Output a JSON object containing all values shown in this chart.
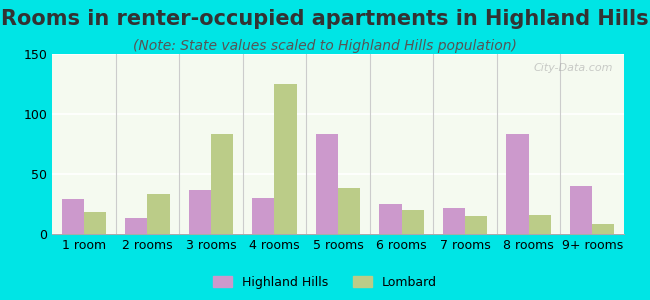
{
  "title": "Rooms in renter-occupied apartments in Highland Hills",
  "subtitle": "(Note: State values scaled to Highland Hills population)",
  "categories": [
    "1 room",
    "2 rooms",
    "3 rooms",
    "4 rooms",
    "5 rooms",
    "6 rooms",
    "7 rooms",
    "8 rooms",
    "9+ rooms"
  ],
  "highland_hills": [
    29,
    13,
    37,
    30,
    83,
    25,
    22,
    83,
    40
  ],
  "lombard": [
    18,
    33,
    83,
    125,
    38,
    20,
    15,
    16,
    8
  ],
  "highland_hills_color": "#cc99cc",
  "lombard_color": "#bbcc88",
  "ylim": [
    0,
    150
  ],
  "yticks": [
    0,
    50,
    100,
    150
  ],
  "bar_width": 0.35,
  "background_top": "#e8f5e8",
  "background_bottom": "#f0f8f0",
  "outer_bg": "#00e5e5",
  "watermark": "City-Data.com",
  "legend_hh": "Highland Hills",
  "legend_lombard": "Lombard",
  "title_fontsize": 15,
  "subtitle_fontsize": 10,
  "axis_label_fontsize": 9
}
